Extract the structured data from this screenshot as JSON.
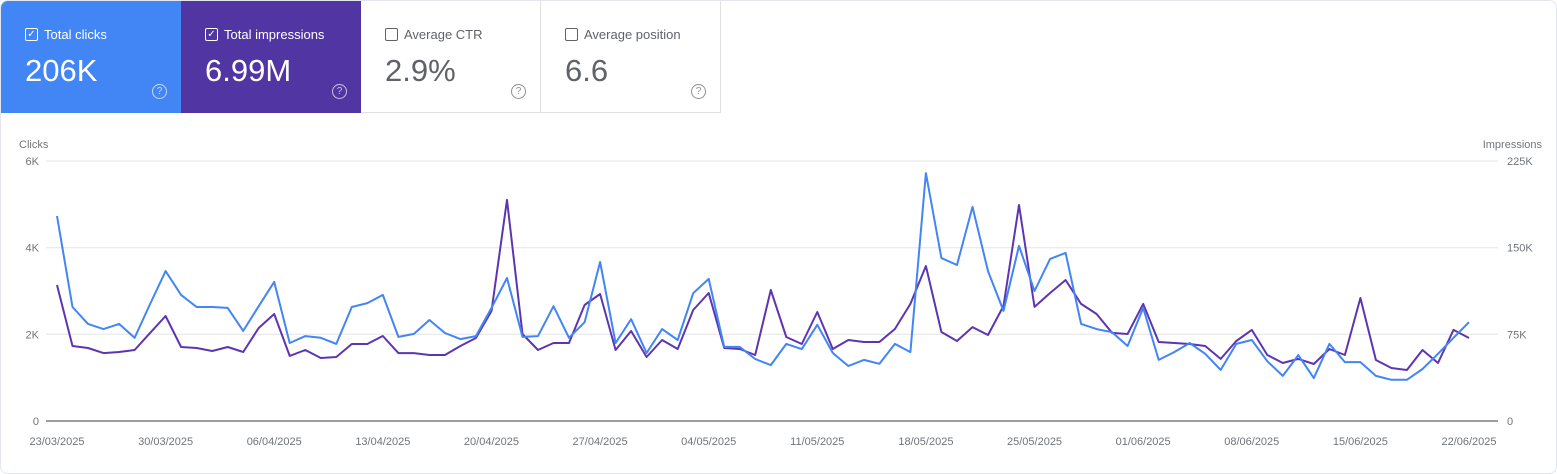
{
  "cards": [
    {
      "label": "Total clicks",
      "value": "206K",
      "checked": true,
      "color": "#4285f4"
    },
    {
      "label": "Total impressions",
      "value": "6.99M",
      "checked": true,
      "color": "#5135a3"
    },
    {
      "label": "Average CTR",
      "value": "2.9%",
      "checked": false
    },
    {
      "label": "Average position",
      "value": "6.6",
      "checked": false
    }
  ],
  "help_glyph": "?",
  "check_glyph": "✓",
  "chart_data": {
    "type": "line",
    "x_range": [
      "23/03/2025",
      "22/06/2025"
    ],
    "x_ticks": [
      "23/03/2025",
      "30/03/2025",
      "06/04/2025",
      "13/04/2025",
      "20/04/2025",
      "27/04/2025",
      "04/05/2025",
      "11/05/2025",
      "18/05/2025",
      "25/05/2025",
      "01/06/2025",
      "08/06/2025",
      "15/06/2025",
      "22/06/2025"
    ],
    "y_left": {
      "label": "Clicks",
      "ticks": [
        "0",
        "2K",
        "4K",
        "6K"
      ],
      "range": [
        0,
        6000
      ]
    },
    "y_right": {
      "label": "Impressions",
      "ticks": [
        "0",
        "75K",
        "150K",
        "225K"
      ],
      "range": [
        0,
        225000
      ]
    },
    "grid": true,
    "series": [
      {
        "name": "Total clicks",
        "axis": "left",
        "color": "#4285f4",
        "values": [
          4730,
          2630,
          2240,
          2120,
          2240,
          1920,
          2700,
          3460,
          2910,
          2630,
          2630,
          2610,
          2080,
          2650,
          3210,
          1800,
          1960,
          1920,
          1780,
          2630,
          2720,
          2910,
          1940,
          2010,
          2330,
          2030,
          1890,
          1960,
          2610,
          3300,
          1940,
          1960,
          2650,
          1920,
          2280,
          3670,
          1800,
          2350,
          1570,
          2120,
          1870,
          2950,
          3280,
          1710,
          1710,
          1430,
          1290,
          1780,
          1660,
          2220,
          1570,
          1270,
          1410,
          1320,
          1780,
          1590,
          5720,
          3760,
          3600,
          4940,
          3460,
          2540,
          4040,
          3000,
          3740,
          3880,
          2240,
          2120,
          2050,
          1730,
          2610,
          1410,
          1590,
          1800,
          1550,
          1180,
          1780,
          1870,
          1380,
          1040,
          1520,
          990,
          1780,
          1360,
          1360,
          1040,
          950,
          950,
          1200,
          1550,
          1920,
          2280
        ]
      },
      {
        "name": "Total impressions",
        "axis": "right",
        "color": "#5e35b1",
        "values": [
          117700,
          64900,
          63200,
          58800,
          59700,
          61400,
          76200,
          90900,
          64000,
          63200,
          60600,
          64000,
          59700,
          80500,
          92600,
          56300,
          61400,
          54500,
          55400,
          66600,
          66600,
          73600,
          58800,
          58800,
          57100,
          57100,
          64900,
          71800,
          95200,
          191300,
          75300,
          61400,
          67500,
          67500,
          100400,
          109900,
          61400,
          77900,
          55400,
          70100,
          62300,
          96100,
          110800,
          63200,
          62300,
          57100,
          113400,
          72700,
          66600,
          94300,
          62300,
          70100,
          68400,
          68400,
          79600,
          101300,
          134100,
          77000,
          69200,
          81300,
          74400,
          99500,
          186900,
          98700,
          110800,
          122000,
          101300,
          92600,
          76200,
          75300,
          101300,
          68400,
          67500,
          66600,
          64900,
          53700,
          69200,
          78800,
          57100,
          50200,
          53700,
          49300,
          62300,
          57100,
          106400,
          52800,
          45900,
          44100,
          61400,
          50200,
          78800,
          71800
        ]
      }
    ]
  }
}
